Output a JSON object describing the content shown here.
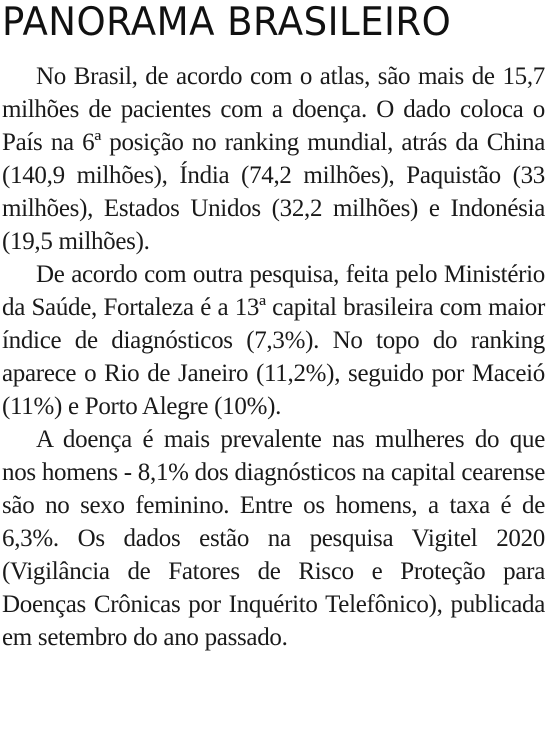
{
  "article": {
    "headline": "PANORAMA BRASILEIRO",
    "paragraphs": [
      "No Brasil, de acordo com o atlas, são mais de 15,7 milhões de pacientes com a doença. O dado coloca o País na 6ª posição no ranking mundial, atrás da China (140,9 milhões), Índia (74,2 mi­lhões), Paquistão (33 milhões), Estados Unidos (32,2 milhões) e Indonésia (19,5 milhões).",
      "De acordo com outra pesquisa, feita pelo Mi­nistério da Saúde, Fortaleza é a 13ª capital brasi­leira com maior índice de diagnósticos (7,3%). No topo do ranking aparece o Rio de Janeiro (11,2%), seguido por Maceió (11%) e Porto Alegre (10%).",
      "A doença é mais prevalente nas mulheres do que nos homens - 8,1% dos diagnósticos na capital cearense são no sexo feminino. Entre os homens, a taxa é de 6,3%. Os dados estão na pesquisa Vigi­tel 2020 (Vigilância de Fatores de Risco e Proteção para Doenças Crônicas por Inquérito Telefônico), publicada em setembro do ano passado."
    ]
  }
}
